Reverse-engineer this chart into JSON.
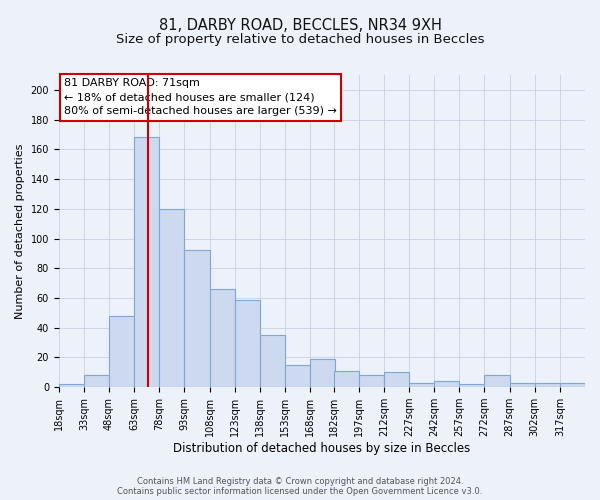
{
  "title": "81, DARBY ROAD, BECCLES, NR34 9XH",
  "subtitle": "Size of property relative to detached houses in Beccles",
  "xlabel": "Distribution of detached houses by size in Beccles",
  "ylabel": "Number of detached properties",
  "bin_edges": [
    18,
    33,
    48,
    63,
    78,
    93,
    108,
    123,
    138,
    153,
    168,
    182,
    197,
    212,
    227,
    242,
    257,
    272,
    287,
    302,
    317,
    332
  ],
  "bar_heights": [
    2,
    8,
    48,
    168,
    120,
    92,
    66,
    59,
    35,
    15,
    19,
    11,
    8,
    10,
    3,
    4,
    2,
    8,
    3,
    3,
    3
  ],
  "bar_color": "#cdd9ee",
  "bar_edge_color": "#7da8d4",
  "bar_linewidth": 0.8,
  "red_line_x": 71,
  "ylim": [
    0,
    210
  ],
  "yticks": [
    0,
    20,
    40,
    60,
    80,
    100,
    120,
    140,
    160,
    180,
    200
  ],
  "grid_color": "#c8d0e0",
  "background_color": "#edf1fa",
  "annotation_title": "81 DARBY ROAD: 71sqm",
  "annotation_line1": "← 18% of detached houses are smaller (124)",
  "annotation_line2": "80% of semi-detached houses are larger (539) →",
  "annotation_box_facecolor": "#ffffff",
  "annotation_box_edgecolor": "#cc0000",
  "footer_line1": "Contains HM Land Registry data © Crown copyright and database right 2024.",
  "footer_line2": "Contains public sector information licensed under the Open Government Licence v3.0.",
  "title_fontsize": 10.5,
  "subtitle_fontsize": 9.5,
  "xlabel_fontsize": 8.5,
  "ylabel_fontsize": 8.0,
  "tick_fontsize": 7.0,
  "annotation_fontsize": 8.0,
  "footer_fontsize": 6.0
}
